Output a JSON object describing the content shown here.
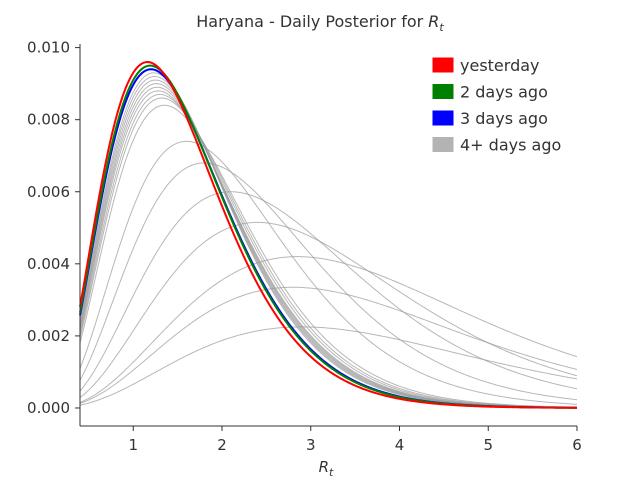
{
  "chart_data": {
    "type": "line",
    "title": "Haryana - Daily Posterior for",
    "title_symbol": "R",
    "title_symbol_sub": "t",
    "xlabel_symbol": "R",
    "xlabel_symbol_sub": "t",
    "ylabel": "",
    "xlim": [
      0.4,
      6.0
    ],
    "ylim": [
      -0.0005,
      0.0101
    ],
    "xticks": [
      1,
      2,
      3,
      4,
      5,
      6
    ],
    "yticks": [
      0.0,
      0.002,
      0.004,
      0.006,
      0.008,
      0.01
    ],
    "ytick_labels": [
      "0.000",
      "0.002",
      "0.004",
      "0.006",
      "0.008",
      "0.010"
    ],
    "grid": false,
    "legend_position": "top-right",
    "legend": [
      {
        "label": "yesterday",
        "color": "#ff0000"
      },
      {
        "label": "2 days ago",
        "color": "#008000"
      },
      {
        "label": "3 days ago",
        "color": "#0000ff"
      },
      {
        "label": "4+ days ago",
        "color": "#b3b3b3"
      }
    ],
    "series": [
      {
        "group": "4+ days ago",
        "color": "#999999",
        "mode": 2.9,
        "peak": 0.00225
      },
      {
        "group": "4+ days ago",
        "color": "#999999",
        "mode": 2.8,
        "peak": 0.00335
      },
      {
        "group": "4+ days ago",
        "color": "#999999",
        "mode": 2.85,
        "peak": 0.0042
      },
      {
        "group": "4+ days ago",
        "color": "#999999",
        "mode": 2.4,
        "peak": 0.00515
      },
      {
        "group": "4+ days ago",
        "color": "#999999",
        "mode": 2.1,
        "peak": 0.006
      },
      {
        "group": "4+ days ago",
        "color": "#999999",
        "mode": 1.8,
        "peak": 0.0068
      },
      {
        "group": "4+ days ago",
        "color": "#999999",
        "mode": 1.6,
        "peak": 0.0074
      },
      {
        "group": "4+ days ago",
        "color": "#999999",
        "mode": 1.35,
        "peak": 0.0084
      },
      {
        "group": "4+ days ago",
        "color": "#999999",
        "mode": 1.32,
        "peak": 0.0086
      },
      {
        "group": "4+ days ago",
        "color": "#999999",
        "mode": 1.3,
        "peak": 0.0087
      },
      {
        "group": "4+ days ago",
        "color": "#999999",
        "mode": 1.28,
        "peak": 0.0088
      },
      {
        "group": "4+ days ago",
        "color": "#999999",
        "mode": 1.27,
        "peak": 0.0089
      },
      {
        "group": "4+ days ago",
        "color": "#999999",
        "mode": 1.26,
        "peak": 0.009
      },
      {
        "group": "4+ days ago",
        "color": "#999999",
        "mode": 1.25,
        "peak": 0.0091
      },
      {
        "group": "4+ days ago",
        "color": "#999999",
        "mode": 1.24,
        "peak": 0.0092
      },
      {
        "group": "4+ days ago",
        "color": "#999999",
        "mode": 1.23,
        "peak": 0.0093
      },
      {
        "group": "3 days ago",
        "color": "#0000ff",
        "mode": 1.2,
        "peak": 0.0094
      },
      {
        "group": "2 days ago",
        "color": "#008000",
        "mode": 1.19,
        "peak": 0.0095
      },
      {
        "group": "yesterday",
        "color": "#ff0000",
        "mode": 1.16,
        "peak": 0.0096
      }
    ]
  }
}
